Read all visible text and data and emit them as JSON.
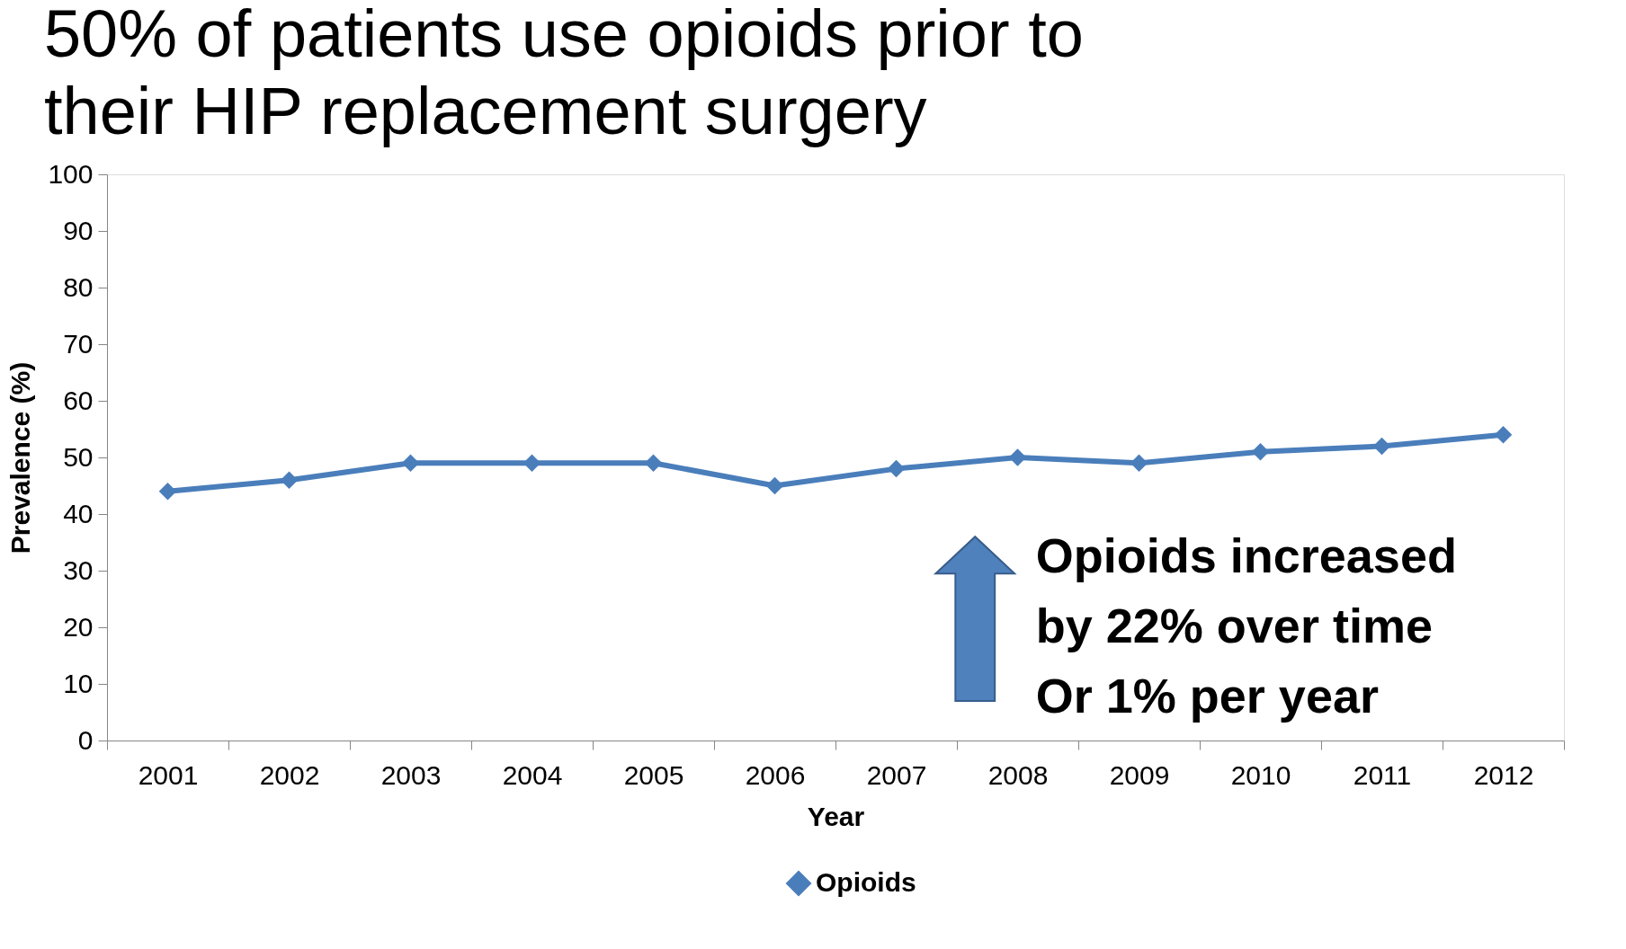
{
  "chart_data": {
    "type": "line",
    "title": "50% of patients use opioids prior to their HIP replacement surgery",
    "xlabel": "Year",
    "ylabel": "Prevalence (%)",
    "categories": [
      "2001",
      "2002",
      "2003",
      "2004",
      "2005",
      "2006",
      "2007",
      "2008",
      "2009",
      "2010",
      "2011",
      "2012"
    ],
    "series": [
      {
        "name": "Opioids",
        "color": "#4a7ebb",
        "values": [
          44,
          46,
          49,
          49,
          49,
          45,
          48,
          50,
          49,
          51,
          52,
          54
        ]
      }
    ],
    "ylim": [
      0,
      100
    ],
    "yticks": [
      0,
      10,
      20,
      30,
      40,
      50,
      60,
      70,
      80,
      90,
      100
    ],
    "grid": false,
    "legend": "bottom",
    "marker": "diamond",
    "line_style": "solid",
    "annotations": [
      "Opioids increased\nby 22% over time\nOr 1% per year"
    ]
  }
}
